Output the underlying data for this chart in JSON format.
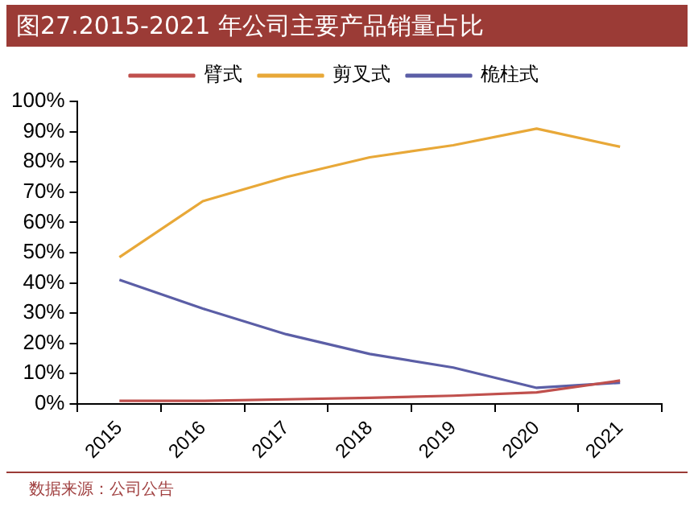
{
  "chart_data": {
    "type": "line",
    "title": "图27.2015-2021 年公司主要产品销量占比",
    "categories": [
      "2015",
      "2016",
      "2017",
      "2018",
      "2019",
      "2020",
      "2021"
    ],
    "series": [
      {
        "name": "臂式",
        "color": "#c0504d",
        "values": [
          1,
          1,
          1.5,
          2,
          2.7,
          3.8,
          7.7
        ]
      },
      {
        "name": "剪叉式",
        "color": "#e8a838",
        "values": [
          48.5,
          67,
          75,
          81.5,
          85.5,
          91,
          85
        ]
      },
      {
        "name": "桅柱式",
        "color": "#5b5ea6",
        "values": [
          41,
          31.5,
          23,
          16.5,
          12,
          5.3,
          7
        ]
      }
    ],
    "ylim": [
      0,
      100
    ],
    "yticks": [
      {
        "value": 0,
        "label": "0%"
      },
      {
        "value": 10,
        "label": "10%"
      },
      {
        "value": 20,
        "label": "20%"
      },
      {
        "value": 30,
        "label": "30%"
      },
      {
        "value": 40,
        "label": "40%"
      },
      {
        "value": 50,
        "label": "50%"
      },
      {
        "value": 60,
        "label": "60%"
      },
      {
        "value": 70,
        "label": "70%"
      },
      {
        "value": 80,
        "label": "80%"
      },
      {
        "value": 90,
        "label": "90%"
      },
      {
        "value": 100,
        "label": "100%"
      }
    ],
    "grid": false,
    "legend": "top",
    "marker": "none",
    "line_style": "solid",
    "annotations": [
      "数据来源：公司公告"
    ]
  }
}
